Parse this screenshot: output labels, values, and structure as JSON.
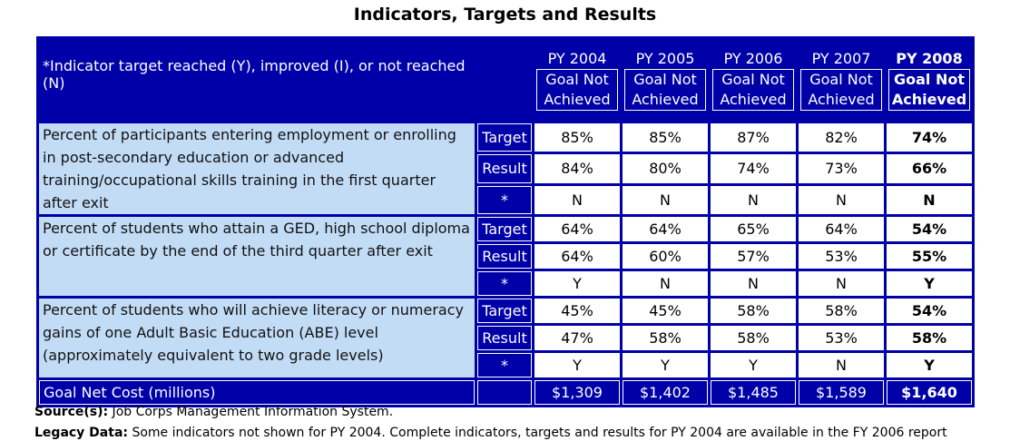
{
  "title": "Indicators, Targets and Results",
  "table": {
    "header": {
      "indicator_note": "*Indicator target reached (Y), improved (I), or not  reached (N)",
      "columns": [
        {
          "year": "PY 2004",
          "status": "Goal Not Achieved"
        },
        {
          "year": "PY 2005",
          "status": "Goal Not Achieved"
        },
        {
          "year": "PY 2006",
          "status": "Goal Not Achieved"
        },
        {
          "year": "PY 2007",
          "status": "Goal Not Achieved"
        },
        {
          "year": "PY 2008",
          "status": "Goal Not Achieved"
        }
      ]
    },
    "groups": [
      {
        "indicator": "Percent of participants entering employment or enrolling in post-secondary education or advanced training/occupational skills training in the first quarter after exit",
        "rows": [
          {
            "label": "Target",
            "values": [
              "85%",
              "85%",
              "87%",
              "82%",
              "74%"
            ]
          },
          {
            "label": "Result",
            "values": [
              "84%",
              "80%",
              "74%",
              "73%",
              "66%"
            ]
          },
          {
            "label": "*",
            "values": [
              "N",
              "N",
              "N",
              "N",
              "N"
            ]
          }
        ]
      },
      {
        "indicator": "Percent of students who attain a GED, high school diploma or certificate by the end of the third quarter after exit",
        "rows": [
          {
            "label": "Target",
            "values": [
              "64%",
              "64%",
              "65%",
              "64%",
              "54%"
            ]
          },
          {
            "label": "Result",
            "values": [
              "64%",
              "60%",
              "57%",
              "53%",
              "55%"
            ]
          },
          {
            "label": "*",
            "values": [
              "Y",
              "N",
              "N",
              "N",
              "Y"
            ]
          }
        ]
      },
      {
        "indicator": "Percent of students who will achieve literacy or numeracy gains of one Adult Basic Education (ABE) level (approximately equivalent to two grade levels)",
        "rows": [
          {
            "label": "Target",
            "values": [
              "45%",
              "45%",
              "58%",
              "58%",
              "54%"
            ]
          },
          {
            "label": "Result",
            "values": [
              "47%",
              "58%",
              "58%",
              "53%",
              "58%"
            ]
          },
          {
            "label": "*",
            "values": [
              "Y",
              "Y",
              "Y",
              "N",
              "Y"
            ]
          }
        ]
      }
    ],
    "footer": {
      "label": "Goal Net Cost (millions)",
      "values": [
        "$1,309",
        "$1,402",
        "$1,485",
        "$1,589",
        "$1,640"
      ]
    }
  },
  "notes": [
    {
      "label": "Source(s):",
      "text": " Job Corps Management Information System."
    },
    {
      "label": "Legacy Data:",
      "text": " Some indicators not shown for PY 2004.  Complete indicators, targets and results for PY 2004 are available in the FY 2006 report"
    }
  ]
}
